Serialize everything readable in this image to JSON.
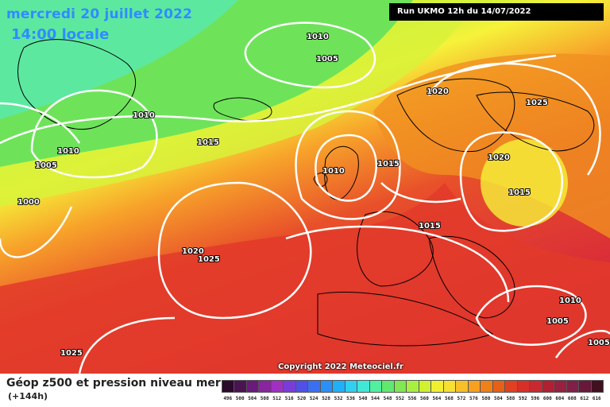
{
  "header": {
    "date_text": "mercredi 20 juillet 2022",
    "time_text": "14:00 locale",
    "run_text": "Run UKMO 12h du 14/07/2022"
  },
  "map": {
    "description_colors": {
      "green": "#6ee35a",
      "yellow_green": "#c8f240",
      "yellow": "#f6f23a",
      "orange": "#f7a22a",
      "dark_orange": "#f07a1c",
      "red": "#e83d2a",
      "deep_red": "#d8283a"
    },
    "isobar_labels": [
      "1010",
      "1005",
      "1010",
      "1010",
      "1005",
      "1000",
      "1015",
      "1020",
      "1025",
      "1010",
      "1015",
      "1020",
      "1025",
      "1020",
      "1015",
      "1015",
      "1010",
      "1005",
      "1005",
      "1025"
    ],
    "copyright": "Copyright 2022 Meteociel.fr"
  },
  "footer": {
    "title": "Géop z500 et pression niveau mer",
    "step": "(+144h)"
  },
  "legend": {
    "ticks": [
      "496",
      "500",
      "504",
      "508",
      "512",
      "516",
      "520",
      "524",
      "528",
      "532",
      "536",
      "540",
      "544",
      "548",
      "552",
      "556",
      "560",
      "564",
      "568",
      "572",
      "576",
      "580",
      "584",
      "588",
      "592",
      "596",
      "600",
      "604",
      "608",
      "612",
      "616"
    ],
    "colors": [
      "#2a0a2a",
      "#4a1450",
      "#6a1a7a",
      "#8a24a0",
      "#a030c0",
      "#7a3cd8",
      "#5050e8",
      "#3a70f0",
      "#2a90f8",
      "#20b0f8",
      "#30d0f0",
      "#40e8d8",
      "#50f0a0",
      "#60e870",
      "#80e850",
      "#a8f040",
      "#d0f030",
      "#f0f030",
      "#f8e030",
      "#f8c028",
      "#f8a020",
      "#f08018",
      "#e86018",
      "#e04020",
      "#d83028",
      "#c82830",
      "#b02030",
      "#982040",
      "#802048",
      "#681838",
      "#401020"
    ]
  }
}
